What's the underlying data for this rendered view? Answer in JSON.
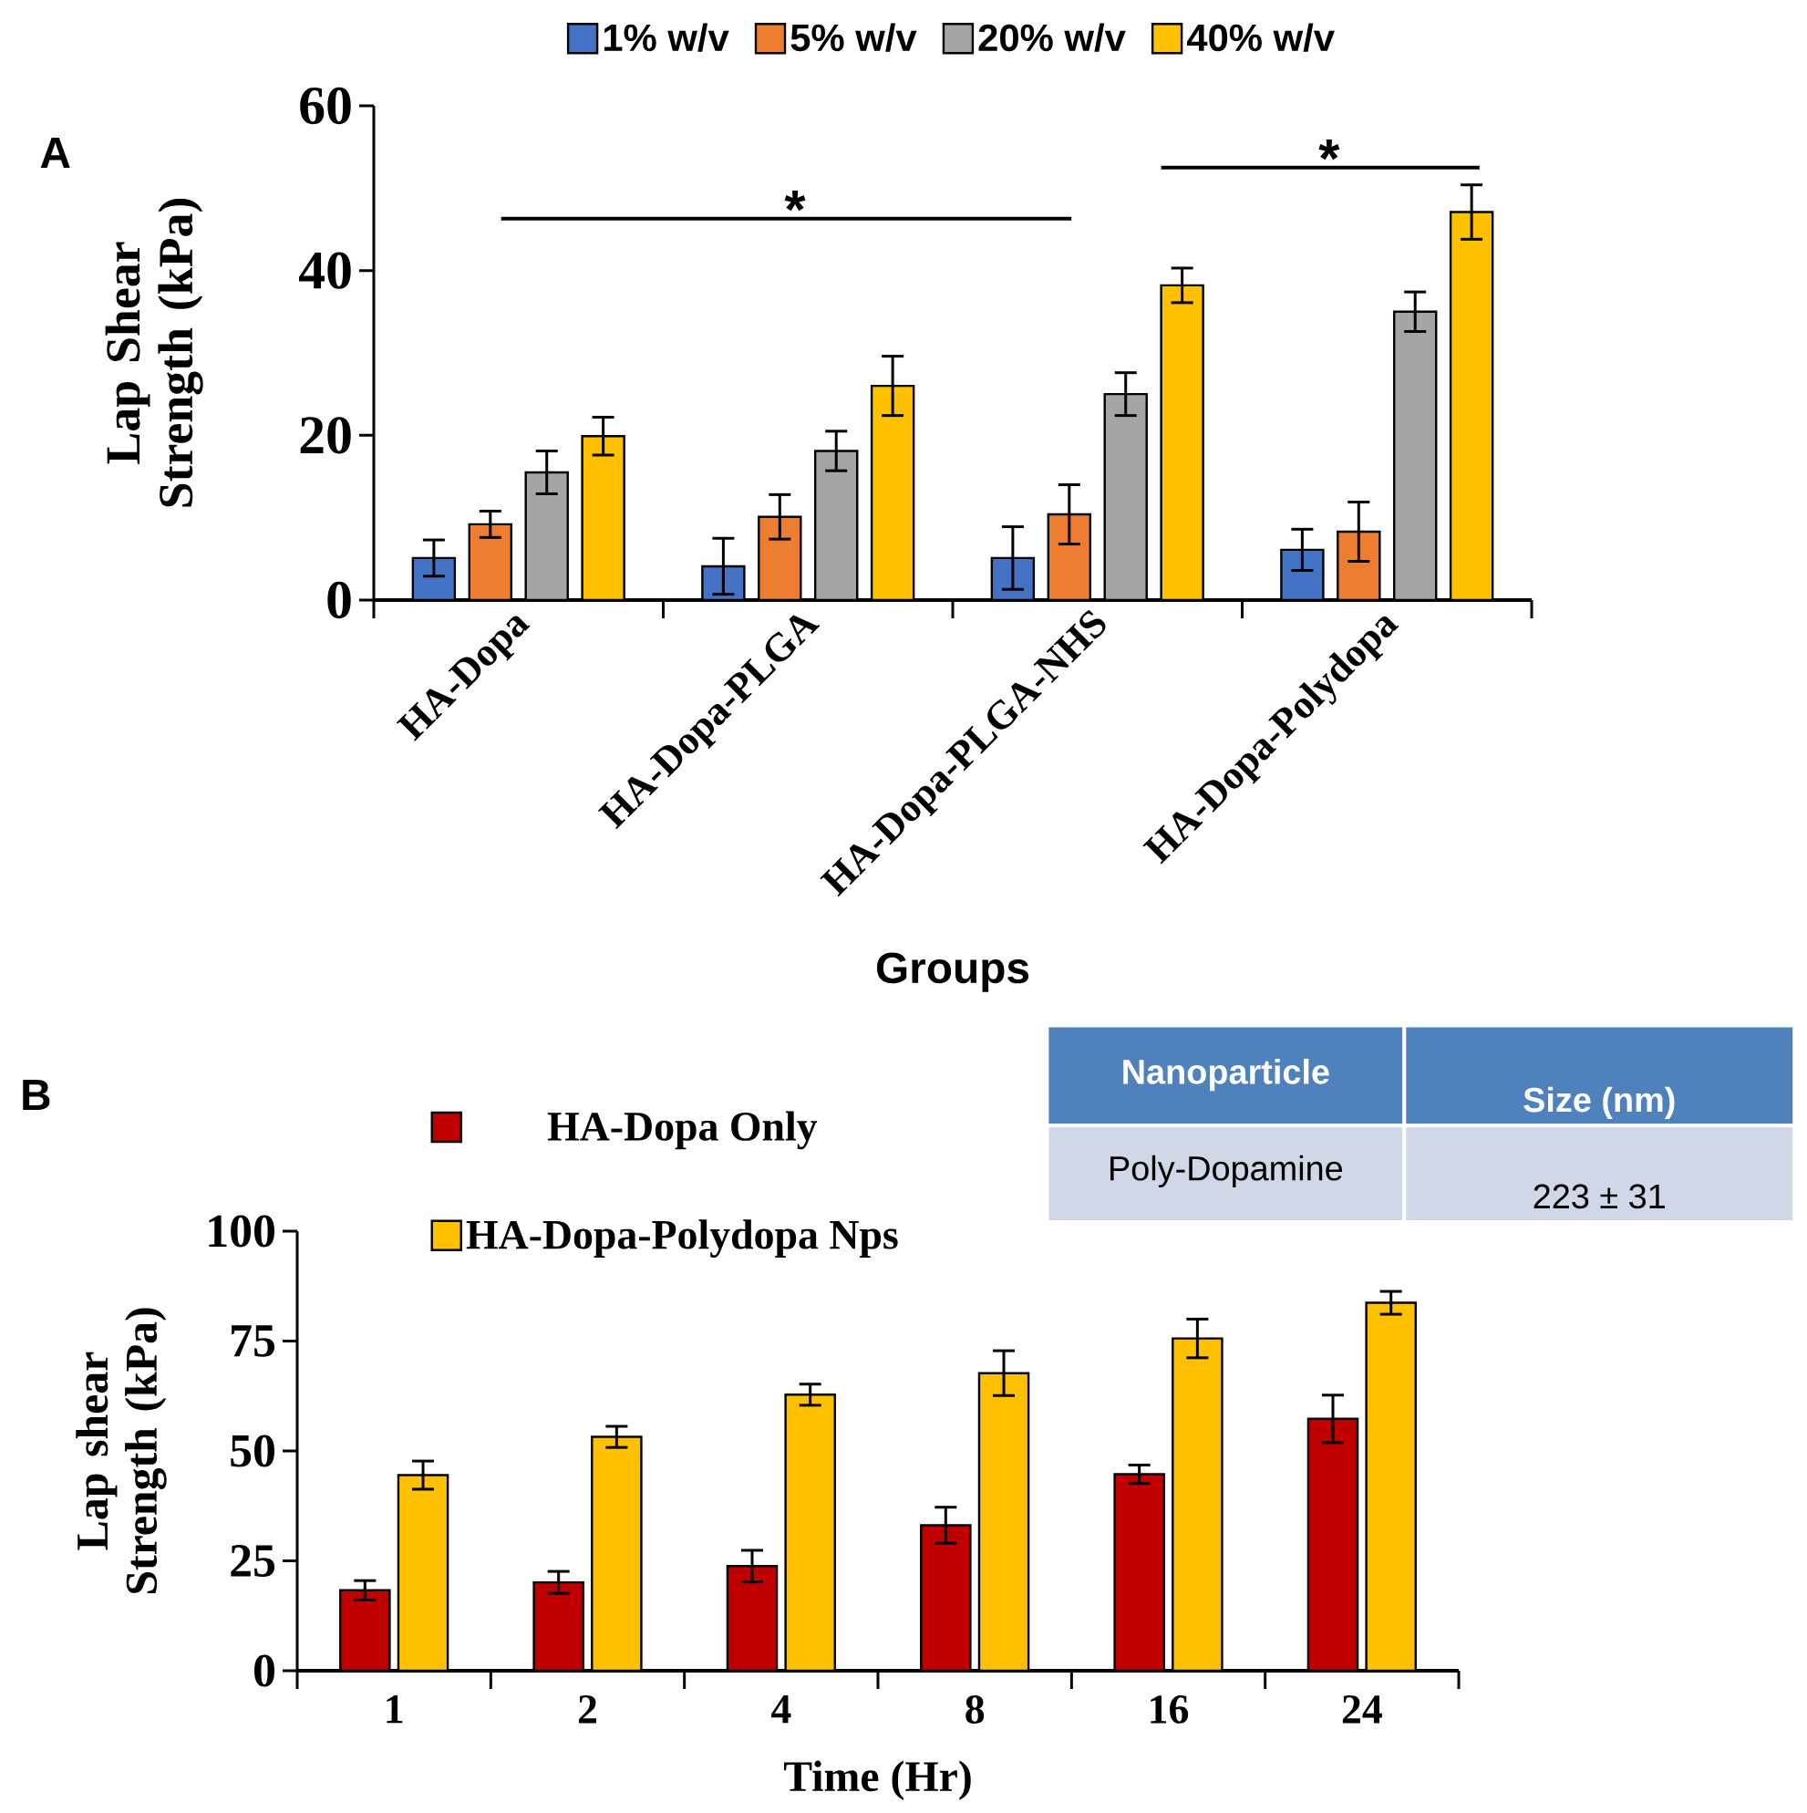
{
  "chart_data": [
    {
      "type": "bar",
      "ylabel": "Lap Shear Strength (kPa)",
      "xlabel": "Groups",
      "categories": [
        "HA-Dopa",
        "HA-Dopa-PLGA",
        "HA-Dopa-PLGA-NHS",
        "HA-Dopa-Polydopa"
      ],
      "series": [
        {
          "name": "1% w/v",
          "color": "#4472c4",
          "values": [
            5.1,
            4.1,
            5.1,
            6.1
          ],
          "errors": [
            2.2,
            3.4,
            3.8,
            2.5
          ]
        },
        {
          "name": "5% w/v",
          "color": "#ed7d31",
          "values": [
            9.2,
            10.1,
            10.4,
            8.3
          ],
          "errors": [
            1.6,
            2.7,
            3.6,
            3.6
          ]
        },
        {
          "name": "20% w/v",
          "color": "#a5a5a5",
          "values": [
            15.5,
            18.1,
            25.0,
            35.0
          ],
          "errors": [
            2.6,
            2.4,
            2.6,
            2.4
          ]
        },
        {
          "name": "40% w/v",
          "color": "#ffc000",
          "values": [
            19.9,
            26.0,
            38.2,
            47.1
          ],
          "errors": [
            2.3,
            3.6,
            2.1,
            3.3
          ]
        }
      ],
      "ylim": [
        0,
        60
      ],
      "yticks": [
        0,
        20,
        40,
        60
      ],
      "legend": "top",
      "grid": false,
      "annotations": [
        "A",
        "*",
        "*"
      ]
    },
    {
      "type": "bar",
      "ylabel": "Lap shear Strength (kPa)",
      "xlabel": "Time (Hr)",
      "categories": [
        "1",
        "2",
        "4",
        "8",
        "16",
        "24"
      ],
      "series": [
        {
          "name": "HA-Dopa Only",
          "color": "#c00000",
          "values": [
            18.3,
            20.1,
            23.8,
            33.1,
            44.7,
            57.3
          ],
          "errors": [
            2.2,
            2.5,
            3.6,
            4.1,
            2.1,
            5.4
          ]
        },
        {
          "name": "HA-Dopa-Polydopa Nps",
          "color": "#ffc000",
          "values": [
            44.5,
            53.2,
            62.8,
            67.7,
            75.6,
            83.7
          ],
          "errors": [
            3.2,
            2.4,
            2.4,
            5.1,
            4.4,
            2.6
          ]
        }
      ],
      "ylim": [
        0,
        100
      ],
      "yticks": [
        0,
        25,
        50,
        75,
        100
      ],
      "legend": "top left",
      "grid": false,
      "annotations": [
        "B"
      ]
    },
    {
      "type": "other",
      "annotations": [
        "Nanoparticle",
        "Size (nm)",
        "Poly-Dopamine",
        "223 ± 31"
      ]
    }
  ]
}
